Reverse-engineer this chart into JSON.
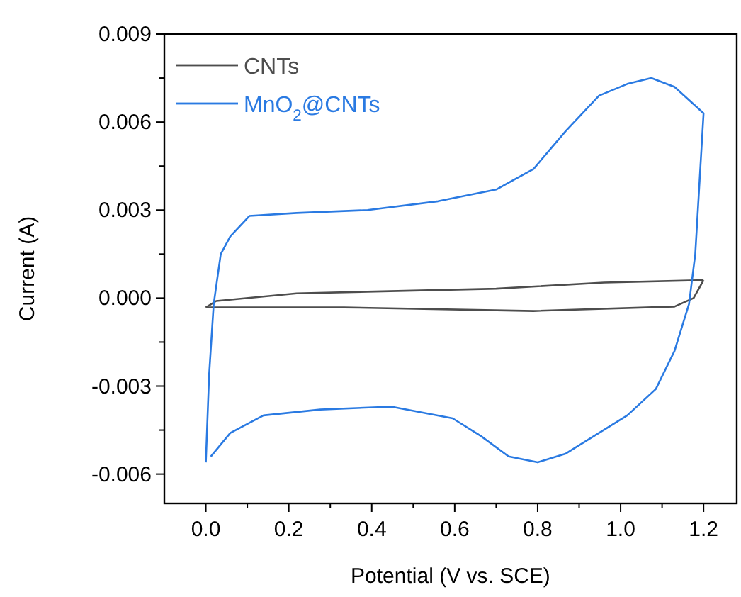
{
  "chart_data": {
    "type": "line",
    "xlabel": "Potential (V vs. SCE)",
    "ylabel": "Current (A)",
    "xlim": [
      -0.1,
      1.28
    ],
    "ylim": [
      -0.007,
      0.009
    ],
    "xticks": [
      {
        "value": 0,
        "label": "0.0"
      },
      {
        "value": 0.1,
        "label": null
      },
      0.2,
      {
        "value": 0.3,
        "label": null
      },
      0.4,
      {
        "value": 0.5,
        "label": null
      },
      0.6,
      {
        "value": 0.7,
        "label": null
      },
      0.8,
      {
        "value": 0.9,
        "label": null
      },
      {
        "value": 1,
        "label": "1.0"
      },
      {
        "value": 1.1,
        "label": null
      },
      1.2
    ],
    "yticks": [
      {
        "value": -0.006,
        "label": "-0.006"
      },
      {
        "value": -0.0045,
        "label": null
      },
      {
        "value": -0.003,
        "label": "-0.003"
      },
      {
        "value": -0.0015,
        "label": null
      },
      {
        "value": 0,
        "label": "0.000"
      },
      {
        "value": 0.0015,
        "label": null
      },
      {
        "value": 0.003,
        "label": "0.003"
      },
      {
        "value": 0.0045,
        "label": null
      },
      {
        "value": 0.006,
        "label": "0.006"
      },
      {
        "value": 0.0075,
        "label": null
      },
      {
        "value": 0.009,
        "label": "0.009"
      }
    ],
    "grid": false,
    "legend": "top left",
    "series": [
      {
        "name": "CNTs",
        "color": "#4d4d4d",
        "x": [
          0,
          0.025,
          0.219,
          0.7,
          0.96,
          1.2
        ],
        "values": [
          -0.00032,
          -0.0001,
          0.00016,
          0.00032,
          0.00053,
          0.00061
        ]
      },
      {
        "color": "#4d4d4d",
        "x": [
          1.2,
          1.176,
          1.13,
          0.79,
          0.333,
          0
        ],
        "values": [
          0.00061,
          0,
          -0.00029,
          -0.00044,
          -0.00032,
          -0.00032
        ]
      },
      {
        "name": "MnO$_{2}$@CNTs",
        "color": "#2a7ae2",
        "x": [
          0,
          0.008,
          0.019,
          0.036,
          0.059,
          0.105,
          0.219,
          0.39,
          0.56,
          0.7,
          0.79,
          0.868,
          0.948,
          1.016,
          1.074,
          1.13,
          1.2
        ],
        "values": [
          -0.0056,
          -0.0026,
          -0.0002,
          0.0015,
          0.0021,
          0.0028,
          0.0029,
          0.003,
          0.0033,
          0.0037,
          0.0044,
          0.0057,
          0.0069,
          0.0073,
          0.0075,
          0.0072,
          0.0063
        ]
      },
      {
        "color": "#2a7ae2",
        "x": [
          1.2,
          1.18,
          1.165,
          1.13,
          1.085,
          1.016,
          0.925,
          0.868,
          0.8,
          0.73,
          0.663,
          0.595,
          0.447,
          0.276,
          0.139,
          0.059,
          0.012
        ],
        "values": [
          0.0063,
          0.0015,
          -0.0002,
          -0.0018,
          -0.0031,
          -0.004,
          -0.0048,
          -0.0053,
          -0.0056,
          -0.0054,
          -0.0047,
          -0.0041,
          -0.0037,
          -0.0038,
          -0.004,
          -0.0046,
          -0.0054
        ]
      }
    ]
  }
}
